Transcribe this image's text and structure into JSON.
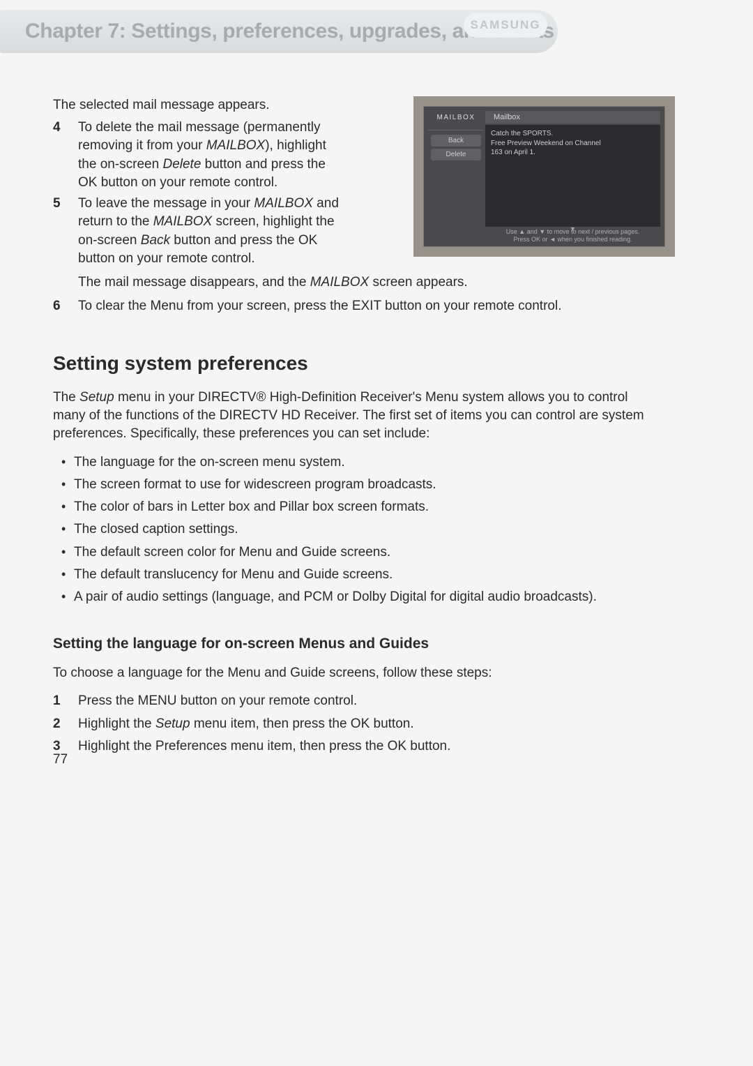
{
  "header": {
    "chapter_title": "Chapter 7: Settings, preferences, upgrades, and extras",
    "brand": "SAMSUNG"
  },
  "page_number": "77",
  "intro_line": "The selected mail message appears.",
  "step4": {
    "num": "4",
    "t1": "To delete the mail message (permanently removing it from your ",
    "mbx1": "MAILBOX",
    "t2": "), highlight the on-screen ",
    "del": "Delete",
    "t3": " button and press the OK button on your remote control."
  },
  "step5": {
    "num": "5",
    "t1": "To leave the message in your ",
    "mbx1": "MAILBOX",
    "t2": " and return to the ",
    "mbx2": "MAILBOX",
    "t3": " screen, highlight the on-screen ",
    "back": "Back",
    "t4": " button and press the OK button on your remote control."
  },
  "disappear_line": {
    "t1": "The mail message disappears, and the ",
    "mbx": "MAILBOX",
    "t2": " screen appears."
  },
  "step6": {
    "num": "6",
    "text": "To clear the Menu from your screen, press the EXIT button on your remote control."
  },
  "mailbox": {
    "section": "MAILBOX",
    "top": "Mailbox",
    "btn_back": "Back",
    "btn_delete": "Delete",
    "msg_line1": "Catch the SPORTS.",
    "msg_line2": "Free Preview Weekend on Channel",
    "msg_line3": "163 on April 1.",
    "foot1": "Use ▲ and ▼ to move to next / previous pages.",
    "foot2": "Press OK or ◄ when you finished reading.",
    "scroll": "▼"
  },
  "prefs": {
    "heading": "Setting system preferences",
    "para_t1": "The ",
    "para_setup": "Setup",
    "para_t2": " menu in your DIRECTV® High-Definition Receiver's Menu system allows you to control many of the functions of the DIRECTV HD Receiver. The first set of items you can control are system preferences. Specifically, these preferences you can set include:",
    "bullets": [
      "The language for the on-screen menu system.",
      "The screen format to use for widescreen program broadcasts.",
      "The color of bars in Letter box and Pillar box screen formats.",
      "The closed caption settings.",
      "The default screen color for Menu and Guide screens.",
      "The default translucency for Menu and Guide screens.",
      "A pair of audio settings (language, and PCM or Dolby Digital for digital audio broadcasts)."
    ]
  },
  "lang": {
    "heading": "Setting the language for on-screen Menus and Guides",
    "intro": "To choose a language for the Menu and Guide screens, follow these steps:",
    "steps": {
      "s1": {
        "num": "1",
        "text": "Press the MENU button on your remote control."
      },
      "s2": {
        "num": "2",
        "t1": "Highlight the ",
        "setup": "Setup",
        "t2": " menu item, then press the OK button."
      },
      "s3": {
        "num": "3",
        "text": "Highlight the Preferences menu item, then press the OK button."
      }
    }
  }
}
